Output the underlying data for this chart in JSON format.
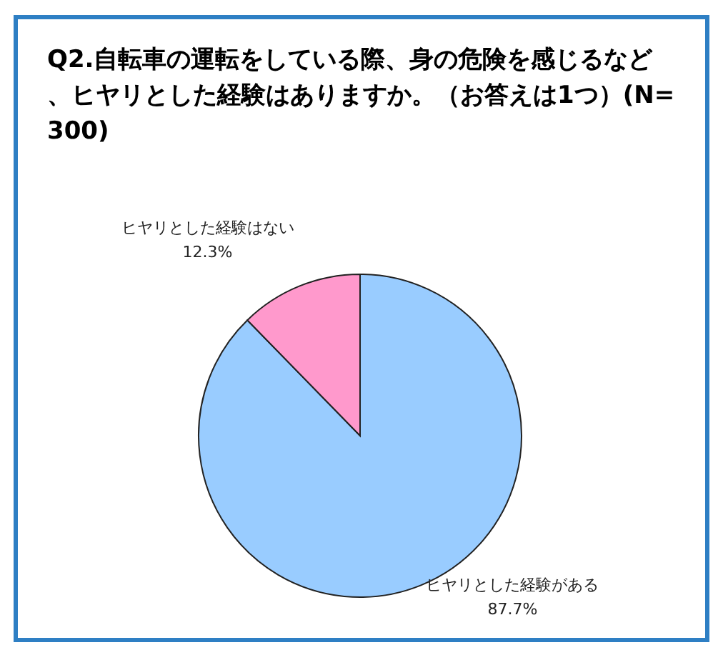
{
  "chart_data": {
    "type": "pie",
    "title": "Q2.自転車の運転をしている際、身の危険を感じるなど、ヒヤリとした経験はありますか。（お答えは1つ）(N=300)",
    "categories": [
      "ヒヤリとした経験がある",
      "ヒヤリとした経験はない"
    ],
    "values": [
      87.7,
      12.3
    ],
    "colors": [
      "#99ccff",
      "#ff99cc"
    ],
    "value_labels": [
      "87.7%",
      "12.3%"
    ]
  }
}
